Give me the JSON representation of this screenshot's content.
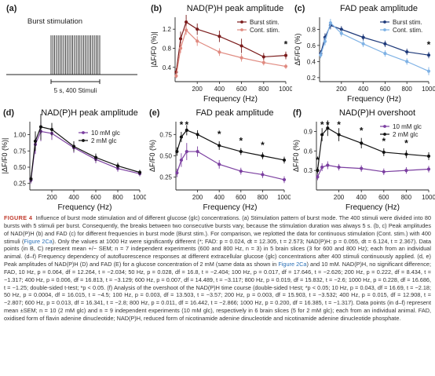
{
  "panel_a": {
    "label": "(a)",
    "title": "Burst stimulation",
    "scale_label": "5 s, 400 Stimuli"
  },
  "chart_data": [
    {
      "panel": "(b)",
      "type": "line",
      "title": "NAD(P)H peak amplitude",
      "xlabel": "Frequency (Hz)",
      "ylabel": "|ΔF/F0 (%)|",
      "x": [
        10,
        50,
        100,
        200,
        400,
        600,
        800,
        1000
      ],
      "xlim": [
        0,
        1000
      ],
      "xticks": [
        200,
        400,
        600,
        800,
        1000
      ],
      "ylim": [
        0.1,
        1.45
      ],
      "yticks": [
        0.4,
        0.8,
        1.2
      ],
      "legend": "top-right",
      "series": [
        {
          "name": "Burst stim.",
          "color": "#7b1c1c",
          "values": [
            0.3,
            1.0,
            1.35,
            1.2,
            1.05,
            0.85,
            0.62,
            0.65
          ],
          "err": [
            0.08,
            0.15,
            0.15,
            0.12,
            0.12,
            0.15,
            0.08,
            0.08
          ]
        },
        {
          "name": "Cont. stim.",
          "color": "#e08a80",
          "values": [
            0.22,
            0.8,
            1.18,
            0.95,
            0.72,
            0.6,
            0.5,
            0.42
          ],
          "err": [
            0.05,
            0.1,
            0.1,
            0.1,
            0.08,
            0.08,
            0.06,
            0.05
          ]
        }
      ],
      "annotations": [
        {
          "x": 1000,
          "text": "*"
        }
      ]
    },
    {
      "panel": "(c)",
      "type": "line",
      "title": "FAD peak amplitude",
      "xlabel": "Frequency (Hz)",
      "ylabel": "ΔF/F0 (%)",
      "x": [
        10,
        50,
        100,
        200,
        400,
        600,
        800,
        1000
      ],
      "xlim": [
        0,
        1000
      ],
      "xticks": [
        200,
        400,
        600,
        800,
        1000
      ],
      "ylim": [
        0.15,
        0.95
      ],
      "yticks": [
        0.2,
        0.4,
        0.6,
        0.8
      ],
      "legend": "top-right",
      "series": [
        {
          "name": "Burst stim.",
          "color": "#1f3a7a",
          "values": [
            0.5,
            0.7,
            0.85,
            0.8,
            0.7,
            0.62,
            0.52,
            0.48
          ],
          "err": [
            0.04,
            0.05,
            0.05,
            0.04,
            0.04,
            0.04,
            0.04,
            0.04
          ]
        },
        {
          "name": "Cont. stim.",
          "color": "#7fb2e5",
          "values": [
            0.48,
            0.65,
            0.88,
            0.75,
            0.62,
            0.5,
            0.4,
            0.28
          ],
          "err": [
            0.04,
            0.05,
            0.05,
            0.04,
            0.04,
            0.04,
            0.04,
            0.05
          ]
        }
      ],
      "annotations": [
        {
          "x": 1000,
          "text": "*"
        }
      ]
    },
    {
      "panel": "(d)",
      "type": "line",
      "title": "NAD(P)H peak amplitude",
      "xlabel": "Frequency (Hz)",
      "ylabel": "|ΔF/F0 (%)|",
      "x": [
        10,
        50,
        100,
        200,
        400,
        600,
        800,
        1000
      ],
      "xlim": [
        0,
        1000
      ],
      "xticks": [
        200,
        400,
        600,
        800,
        1000
      ],
      "ylim": [
        0.15,
        1.2
      ],
      "yticks": [
        0.25,
        0.5,
        0.75,
        1.0
      ],
      "legend": "right",
      "series": [
        {
          "name": "10 mM glc",
          "color": "#7b3fa0",
          "values": [
            0.3,
            0.85,
            1.05,
            1.02,
            0.8,
            0.62,
            0.48,
            0.4
          ],
          "err": [
            0.05,
            0.15,
            0.15,
            0.1,
            0.08,
            0.06,
            0.05,
            0.04
          ]
        },
        {
          "name": "2 mM glc",
          "color": "#111111",
          "values": [
            0.32,
            0.9,
            1.12,
            1.08,
            0.82,
            0.65,
            0.52,
            0.42
          ],
          "err": [
            0.05,
            0.15,
            0.2,
            0.1,
            0.08,
            0.06,
            0.05,
            0.04
          ]
        }
      ]
    },
    {
      "panel": "(e)",
      "type": "line",
      "title": "FAD peak amplitude",
      "xlabel": "Frequency (Hz)",
      "ylabel": "ΔF/F0 (%)",
      "x": [
        10,
        50,
        100,
        200,
        400,
        600,
        800,
        1000
      ],
      "xlim": [
        0,
        1000
      ],
      "xticks": [
        200,
        400,
        600,
        800,
        1000
      ],
      "ylim": [
        0.1,
        0.9
      ],
      "yticks": [
        0.25,
        0.5,
        0.75
      ],
      "series": [
        {
          "name": "10 mM glc",
          "color": "#7b3fa0",
          "values": [
            0.3,
            0.45,
            0.55,
            0.55,
            0.4,
            0.32,
            0.28,
            0.22
          ],
          "err": [
            0.05,
            0.08,
            0.1,
            0.06,
            0.05,
            0.04,
            0.04,
            0.04
          ]
        },
        {
          "name": "2 mM glc",
          "color": "#111111",
          "values": [
            0.55,
            0.72,
            0.8,
            0.75,
            0.62,
            0.55,
            0.5,
            0.45
          ],
          "err": [
            0.05,
            0.06,
            0.06,
            0.05,
            0.05,
            0.04,
            0.04,
            0.04
          ]
        }
      ],
      "annotations": [
        {
          "x": 50,
          "text": "*"
        },
        {
          "x": 100,
          "text": "*"
        },
        {
          "x": 400,
          "text": "*"
        },
        {
          "x": 600,
          "text": "*"
        },
        {
          "x": 800,
          "text": "*"
        }
      ]
    },
    {
      "panel": "(f)",
      "type": "line",
      "title": "NAD(P)H overshoot",
      "xlabel": "Frequency (Hz)",
      "ylabel": "ΔF/F0 (%)",
      "x": [
        10,
        50,
        100,
        200,
        400,
        600,
        800,
        1000
      ],
      "xlim": [
        0,
        1000
      ],
      "xticks": [
        200,
        400,
        600,
        800,
        1000
      ],
      "ylim": [
        0.0,
        1.05
      ],
      "yticks": [
        0.3,
        0.6,
        0.9
      ],
      "legend": "top-right",
      "series": [
        {
          "name": "10 mM glc",
          "color": "#7b3fa0",
          "values": [
            0.2,
            0.35,
            0.38,
            0.35,
            0.33,
            0.28,
            0.3,
            0.32
          ],
          "err": [
            0.05,
            0.06,
            0.06,
            0.05,
            0.05,
            0.05,
            0.05,
            0.05
          ]
        },
        {
          "name": "2 mM glc",
          "color": "#111111",
          "values": [
            0.3,
            0.85,
            0.95,
            0.85,
            0.72,
            0.58,
            0.55,
            0.52
          ],
          "err": [
            0.05,
            0.1,
            0.12,
            0.1,
            0.08,
            0.06,
            0.06,
            0.06
          ]
        }
      ],
      "annotations": [
        {
          "x": 10,
          "text": "*"
        },
        {
          "x": 50,
          "text": "*"
        },
        {
          "x": 100,
          "text": "*"
        },
        {
          "x": 200,
          "text": "*"
        },
        {
          "x": 400,
          "text": "*"
        },
        {
          "x": 600,
          "text": "*"
        },
        {
          "x": 800,
          "text": "*"
        }
      ]
    }
  ],
  "caption": {
    "figure_label": "FIGURE 4",
    "text_1": "Influence of burst mode stimulation and of different glucose (glc) concentrations. (a) Stimulation pattern of burst mode. The 400 stimuli were divided into 80 bursts with 5 stimuli per burst. Consequently, the breaks between two consecutive bursts vary, because the stimulation duration was always 5 s. (b, c) Peak amplitudes of NAD(P)H (b) and FAD (c) for different frequencies in burst mode (Burst stim.). For comparison, we replotted the data for continuous stimulation (Cont. stim.) with 400 stimuli (",
    "ref_1": "Figure 2Ca",
    "text_2": "). Only the values at 1000 Hz were significantly different (*; FAD: p = 0.024, dt = 12.305, t = 2.573; NAD(P)H: p = 0.055, dt = 6.124, t = 2.367). Data points (in B, C) represent mean +/− SEM; n = 7 independent experiments (600 and 800 Hz, n = 3) in 5 brain slices (3 for 600 and 800 Hz); each from an individual animal. (d–f) Frequency dependency of autofluorescence responses at different extracellular glucose (glc) concentrations after 400 stimuli continuously applied. (d, e) Peak amplitudes of NAD(P)H (D) and FAD (E) for a glucose concentration of 2 mM (same data as shown in ",
    "ref_2": "Figure 2Ca",
    "text_3": ") and 10 mM. NAD(P)H, no significant difference; FAD, 10 Hz, p = 0.064, df = 12.264, t = −2.034; 50 Hz, p = 0.028, df = 16.8, t = −2.404; 100 Hz, p = 0.017, df = 17.646, t = −2.626; 200 Hz, p = 0.222, df = 8.434, t = −1.317; 400 Hz, p = 0.006, df = 16.813, t = −3.129; 600 Hz, p = 0.007, df = 14.489, t = −3.117; 800 Hz, p = 0.019, df = 15.832, t = −2.6; 1000 Hz, p = 0.228, df = 16.686, t = −1.25; double-sided t-test; *p < 0.05. (f) Analysis of the overshoot of the NAD(P)H time course (double-sided t-test; *p < 0.05; 10 Hz, p = 0.043, df = 16.69, t = −2.18; 50 Hz, p = 0.0004, df = 16.015, t = −4.5; 100 Hz, p = 0.003, df = 13.503, t = −3.57; 200 Hz, p = 0.003, df = 15.903, t = −3.532; 400 Hz, p = 0.015, df = 12.908, t = −2.807; 600 Hz, p = 0.013, df = 16.341, t = −2.8; 800 Hz, p = 0.011, df = 16.442, t = −2.866; 1000 Hz, p = 0.200, df = 16.385, t = −1.317). Data points (in d–f) represent mean ±SEM; n = 10 (2 mM glc) and n = 9 independent experiments (10 mM glc), respectively in 6 brain slices (5 for 2 mM glc); each from an individual animal. FAD, oxidised form of flavin adenine dinucleotide; NAD(P)H, reduced form of nicotinamide adenine dinucleotide and nicotinamide adenine dinucleotide phosphate."
  }
}
